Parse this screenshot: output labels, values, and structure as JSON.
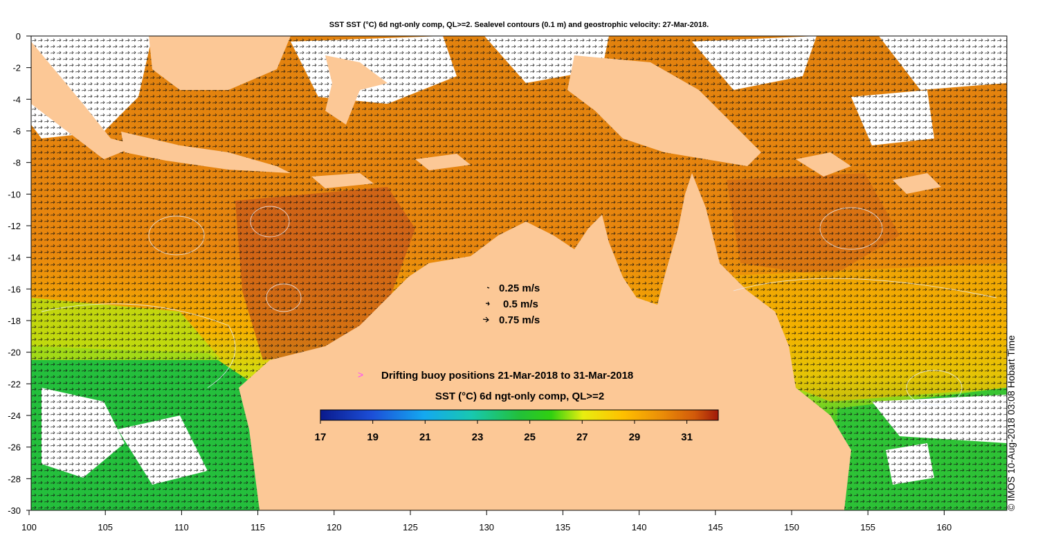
{
  "title": "SST SST (°C) 6d ngt-only comp, QL>=2. Sealevel contours (0.1 m) and geostrophic velocity: 27-Mar-2018.",
  "axes": {
    "lon_ticks": [
      "100",
      "105",
      "110",
      "115",
      "120",
      "125",
      "130",
      "135",
      "140",
      "145",
      "150",
      "155",
      "160"
    ],
    "lat_ticks": [
      "0",
      "-2",
      "-4",
      "-6",
      "-8",
      "-10",
      "-12",
      "-14",
      "-16",
      "-18",
      "-20",
      "-22",
      "-24",
      "-26",
      "-28",
      "-30"
    ]
  },
  "velocity_legend": [
    {
      "label": "0.25 m/s"
    },
    {
      "label": "0.5 m/s"
    },
    {
      "label": "0.75 m/s"
    }
  ],
  "buoy_legend": {
    "marker": ">",
    "label": "Drifting buoy positions 21-Mar-2018 to 31-Mar-2018",
    "color": "#ff44ff"
  },
  "colorbar": {
    "title": "SST (°C) 6d ngt-only comp, QL>=2",
    "ticks": [
      "17",
      "19",
      "21",
      "23",
      "25",
      "27",
      "29",
      "31"
    ],
    "range": [
      17,
      32.2
    ]
  },
  "credit": "© IMOS 10-Aug-2018 03:08 Hobart Time",
  "colors": {
    "land": "#fcc896",
    "warm": "#e27a10",
    "hot": "#c45010",
    "mid": "#f7a600",
    "cool": "#22c230",
    "cloud": "#ffffff"
  }
}
